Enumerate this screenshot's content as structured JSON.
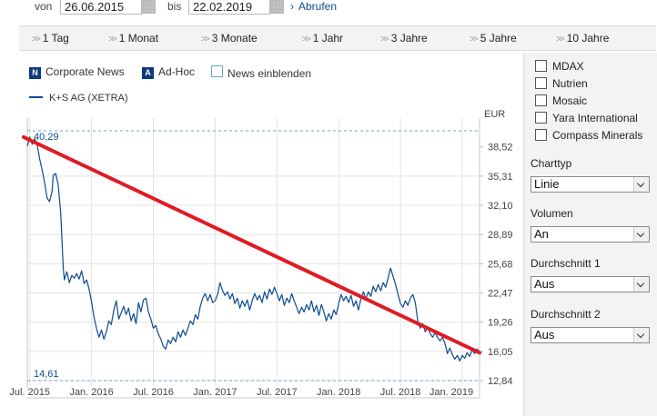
{
  "date_bar": {
    "from_label": "von",
    "from_value": "26.06.2015",
    "to_label": "bis",
    "to_value": "22.02.2019",
    "submit_label": "Abrufen"
  },
  "ranges": [
    "1 Tag",
    "1 Monat",
    "3 Monate",
    "1 Jahr",
    "3 Jahre",
    "5 Jahre",
    "10 Jahre"
  ],
  "legend": {
    "corporate_badge": "N",
    "corporate_label": "Corporate News",
    "adhoc_badge": "A",
    "adhoc_label": "Ad-Hoc",
    "news_label": "News einblenden",
    "series_label": "K+S AG (XETRA)"
  },
  "panel": {
    "compare": [
      "MDAX",
      "Nutrien",
      "Mosaic",
      "Yara International",
      "Compass Minerals"
    ],
    "charttyp_label": "Charttyp",
    "charttyp_value": "Linie",
    "volumen_label": "Volumen",
    "volumen_value": "An",
    "avg1_label": "Durchschnitt 1",
    "avg1_value": "Aus",
    "avg2_label": "Durchschnitt 2",
    "avg2_value": "Aus"
  },
  "colors": {
    "line": "#0d4a91",
    "trend": "#e01b24",
    "accent": "#0d3b7a"
  },
  "chart_data": {
    "type": "line",
    "unit_label": "EUR",
    "max_label": "40,29",
    "min_label": "14,61",
    "max_value": 40.29,
    "min_value": 14.61,
    "ylim": [
      12.84,
      40.29
    ],
    "ytick_values": [
      38.52,
      35.31,
      32.1,
      28.89,
      25.68,
      22.47,
      19.26,
      16.05,
      12.84
    ],
    "ytick_labels": [
      "38,52",
      "35,31",
      "32,10",
      "28,89",
      "25,68",
      "22,47",
      "19,26",
      "16,05",
      "12,84"
    ],
    "x_start": 2015.48,
    "x_end": 2019.14,
    "xtick_values": [
      2015.5,
      2016.0,
      2016.5,
      2017.0,
      2017.5,
      2018.0,
      2018.5,
      2019.0
    ],
    "xtick_labels": [
      "Jul. 2015",
      "Jan. 2016",
      "Jul. 2016",
      "Jan. 2017",
      "Jul. 2017",
      "Jan. 2018",
      "Jul. 2018",
      "Jan. 2019"
    ],
    "series": [
      {
        "name": "K+S AG (XETRA)",
        "points": [
          [
            2015.48,
            38.6
          ],
          [
            2015.5,
            39.6
          ],
          [
            2015.52,
            38.8
          ],
          [
            2015.54,
            39.4
          ],
          [
            2015.56,
            38.7
          ],
          [
            2015.58,
            37.2
          ],
          [
            2015.6,
            36.0
          ],
          [
            2015.62,
            34.6
          ],
          [
            2015.64,
            32.9
          ],
          [
            2015.66,
            32.5
          ],
          [
            2015.68,
            33.6
          ],
          [
            2015.69,
            35.4
          ],
          [
            2015.71,
            35.6
          ],
          [
            2015.73,
            34.4
          ],
          [
            2015.75,
            31.3
          ],
          [
            2015.76,
            28.5
          ],
          [
            2015.77,
            25.4
          ],
          [
            2015.78,
            23.9
          ],
          [
            2015.8,
            24.8
          ],
          [
            2015.82,
            23.6
          ],
          [
            2015.84,
            24.4
          ],
          [
            2015.86,
            24.1
          ],
          [
            2015.88,
            24.6
          ],
          [
            2015.9,
            24.0
          ],
          [
            2015.92,
            24.9
          ],
          [
            2015.94,
            23.5
          ],
          [
            2015.96,
            23.9
          ],
          [
            2015.98,
            22.9
          ],
          [
            2016.0,
            21.5
          ],
          [
            2016.02,
            19.8
          ],
          [
            2016.04,
            18.6
          ],
          [
            2016.06,
            17.6
          ],
          [
            2016.08,
            18.4
          ],
          [
            2016.1,
            17.4
          ],
          [
            2016.12,
            18.2
          ],
          [
            2016.14,
            19.4
          ],
          [
            2016.16,
            19.0
          ],
          [
            2016.18,
            20.6
          ],
          [
            2016.2,
            21.6
          ],
          [
            2016.22,
            19.6
          ],
          [
            2016.24,
            20.3
          ],
          [
            2016.26,
            21.0
          ],
          [
            2016.28,
            20.1
          ],
          [
            2016.3,
            20.8
          ],
          [
            2016.32,
            19.4
          ],
          [
            2016.34,
            20.2
          ],
          [
            2016.36,
            19.1
          ],
          [
            2016.38,
            21.4
          ],
          [
            2016.4,
            20.4
          ],
          [
            2016.42,
            21.7
          ],
          [
            2016.44,
            21.9
          ],
          [
            2016.46,
            20.4
          ],
          [
            2016.48,
            19.6
          ],
          [
            2016.5,
            18.6
          ],
          [
            2016.52,
            18.9
          ],
          [
            2016.54,
            18.0
          ],
          [
            2016.56,
            17.4
          ],
          [
            2016.58,
            16.6
          ],
          [
            2016.6,
            16.3
          ],
          [
            2016.62,
            17.3
          ],
          [
            2016.64,
            16.9
          ],
          [
            2016.66,
            17.6
          ],
          [
            2016.68,
            17.1
          ],
          [
            2016.7,
            18.2
          ],
          [
            2016.72,
            17.6
          ],
          [
            2016.74,
            18.4
          ],
          [
            2016.76,
            17.8
          ],
          [
            2016.78,
            18.6
          ],
          [
            2016.8,
            19.4
          ],
          [
            2016.82,
            19.0
          ],
          [
            2016.84,
            20.1
          ],
          [
            2016.86,
            19.6
          ],
          [
            2016.88,
            21.0
          ],
          [
            2016.9,
            21.9
          ],
          [
            2016.92,
            22.4
          ],
          [
            2016.94,
            21.6
          ],
          [
            2016.96,
            22.3
          ],
          [
            2016.98,
            21.4
          ],
          [
            2017.0,
            21.6
          ],
          [
            2017.02,
            22.3
          ],
          [
            2017.04,
            23.6
          ],
          [
            2017.06,
            22.7
          ],
          [
            2017.08,
            22.2
          ],
          [
            2017.1,
            22.6
          ],
          [
            2017.12,
            21.8
          ],
          [
            2017.14,
            22.4
          ],
          [
            2017.16,
            21.3
          ],
          [
            2017.18,
            21.9
          ],
          [
            2017.2,
            20.8
          ],
          [
            2017.22,
            21.6
          ],
          [
            2017.24,
            21.0
          ],
          [
            2017.26,
            21.7
          ],
          [
            2017.28,
            20.6
          ],
          [
            2017.3,
            21.6
          ],
          [
            2017.32,
            22.4
          ],
          [
            2017.34,
            21.7
          ],
          [
            2017.36,
            22.2
          ],
          [
            2017.38,
            21.4
          ],
          [
            2017.4,
            22.6
          ],
          [
            2017.42,
            21.8
          ],
          [
            2017.44,
            22.9
          ],
          [
            2017.46,
            22.3
          ],
          [
            2017.48,
            23.1
          ],
          [
            2017.5,
            22.4
          ],
          [
            2017.52,
            21.6
          ],
          [
            2017.54,
            22.3
          ],
          [
            2017.56,
            21.1
          ],
          [
            2017.58,
            21.9
          ],
          [
            2017.6,
            21.4
          ],
          [
            2017.62,
            22.4
          ],
          [
            2017.64,
            21.6
          ],
          [
            2017.66,
            20.9
          ],
          [
            2017.68,
            20.2
          ],
          [
            2017.7,
            20.9
          ],
          [
            2017.72,
            20.4
          ],
          [
            2017.74,
            21.2
          ],
          [
            2017.76,
            20.6
          ],
          [
            2017.78,
            21.6
          ],
          [
            2017.8,
            20.4
          ],
          [
            2017.82,
            21.1
          ],
          [
            2017.84,
            20.0
          ],
          [
            2017.86,
            21.2
          ],
          [
            2017.88,
            20.4
          ],
          [
            2017.9,
            19.4
          ],
          [
            2017.92,
            20.2
          ],
          [
            2017.94,
            19.6
          ],
          [
            2017.96,
            20.6
          ],
          [
            2017.98,
            20.1
          ],
          [
            2018.0,
            21.3
          ],
          [
            2018.02,
            22.3
          ],
          [
            2018.04,
            21.6
          ],
          [
            2018.06,
            22.1
          ],
          [
            2018.08,
            21.4
          ],
          [
            2018.1,
            22.2
          ],
          [
            2018.12,
            21.0
          ],
          [
            2018.14,
            21.6
          ],
          [
            2018.16,
            20.6
          ],
          [
            2018.18,
            21.8
          ],
          [
            2018.2,
            22.6
          ],
          [
            2018.22,
            21.8
          ],
          [
            2018.24,
            22.6
          ],
          [
            2018.26,
            22.1
          ],
          [
            2018.28,
            23.2
          ],
          [
            2018.3,
            22.6
          ],
          [
            2018.32,
            23.4
          ],
          [
            2018.34,
            22.7
          ],
          [
            2018.36,
            23.6
          ],
          [
            2018.38,
            23.1
          ],
          [
            2018.4,
            24.1
          ],
          [
            2018.42,
            25.2
          ],
          [
            2018.44,
            24.3
          ],
          [
            2018.46,
            23.4
          ],
          [
            2018.48,
            22.3
          ],
          [
            2018.5,
            21.3
          ],
          [
            2018.52,
            20.9
          ],
          [
            2018.54,
            21.6
          ],
          [
            2018.56,
            21.1
          ],
          [
            2018.58,
            21.9
          ],
          [
            2018.6,
            22.3
          ],
          [
            2018.62,
            21.4
          ],
          [
            2018.64,
            19.4
          ],
          [
            2018.66,
            18.6
          ],
          [
            2018.68,
            19.1
          ],
          [
            2018.7,
            18.2
          ],
          [
            2018.72,
            18.7
          ],
          [
            2018.74,
            18.0
          ],
          [
            2018.76,
            17.6
          ],
          [
            2018.78,
            18.1
          ],
          [
            2018.8,
            17.6
          ],
          [
            2018.82,
            17.2
          ],
          [
            2018.84,
            17.6
          ],
          [
            2018.86,
            16.9
          ],
          [
            2018.88,
            15.8
          ],
          [
            2018.9,
            16.4
          ],
          [
            2018.92,
            15.7
          ],
          [
            2018.94,
            15.2
          ],
          [
            2018.96,
            15.6
          ],
          [
            2018.98,
            15.0
          ],
          [
            2019.0,
            15.6
          ],
          [
            2019.02,
            15.3
          ],
          [
            2019.04,
            15.9
          ],
          [
            2019.06,
            15.5
          ],
          [
            2019.08,
            16.2
          ],
          [
            2019.1,
            15.8
          ],
          [
            2019.12,
            16.3
          ],
          [
            2019.14,
            16.0
          ]
        ]
      }
    ],
    "annotation": {
      "type": "trendline",
      "from": [
        2015.45,
        39.6
      ],
      "to": [
        2019.14,
        15.9
      ]
    }
  }
}
